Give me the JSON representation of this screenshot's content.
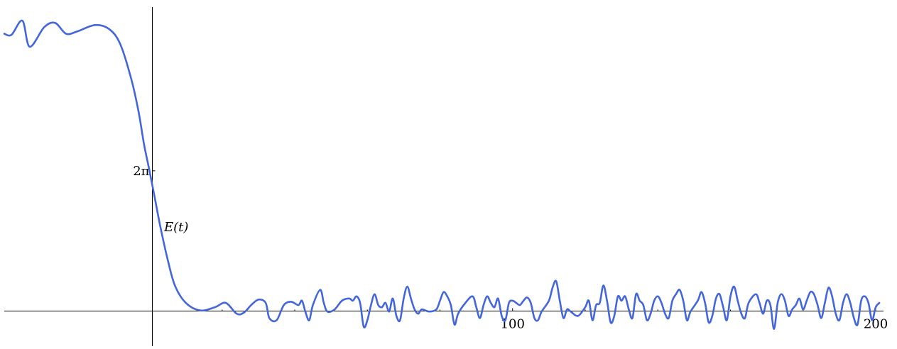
{
  "chart_data": {
    "type": "line",
    "title": "",
    "xlabel": "",
    "ylabel": "",
    "xlim": [
      -40,
      200
    ],
    "ylim": [
      -1.5,
      13.5
    ],
    "x_ticks": [
      {
        "value": 100,
        "label": "100"
      },
      {
        "value": 200,
        "label": "200"
      }
    ],
    "x_minor_ticks": [
      20,
      40,
      60,
      80,
      120,
      140,
      160,
      180
    ],
    "y_ticks": [
      {
        "value": 6.283,
        "label": "2π"
      }
    ],
    "curve_label": "E(t)",
    "curve_label_at": [
      4,
      3.5
    ],
    "grid": false,
    "legend": "none",
    "series": [
      {
        "color": "#4466dd",
        "points": [
          [
            -40,
            12.6
          ],
          [
            -38,
            12.55
          ],
          [
            -35,
            13.2
          ],
          [
            -33,
            12.0
          ],
          [
            -29,
            12.9
          ],
          [
            -26,
            13.1
          ],
          [
            -23,
            12.6
          ],
          [
            -20,
            12.7
          ],
          [
            -15,
            13.0
          ],
          [
            -11,
            12.8
          ],
          [
            -8,
            12.1
          ],
          [
            -5,
            10.5
          ],
          [
            -3,
            9.0
          ],
          [
            -1.5,
            7.5
          ],
          [
            0,
            6.283
          ],
          [
            1.5,
            5.0
          ],
          [
            3,
            3.7
          ],
          [
            5,
            2.2
          ],
          [
            7,
            1.0
          ],
          [
            10,
            0.2
          ],
          [
            14,
            -0.15
          ],
          [
            18,
            0.0
          ],
          [
            21,
            0.2
          ],
          [
            24,
            -0.3
          ],
          [
            26,
            -0.25
          ],
          [
            28,
            0.1
          ],
          [
            30,
            0.35
          ],
          [
            32,
            0.2
          ],
          [
            33,
            -0.5
          ],
          [
            35,
            -0.6
          ],
          [
            37,
            0.1
          ],
          [
            39,
            0.25
          ],
          [
            41,
            0.1
          ],
          [
            42,
            0.3
          ],
          [
            43,
            -0.25
          ],
          [
            44,
            -0.6
          ],
          [
            45,
            0.1
          ],
          [
            47,
            0.8
          ],
          [
            48,
            0.2
          ],
          [
            49,
            -0.2
          ],
          [
            51,
            -0.1
          ],
          [
            53,
            0.3
          ],
          [
            55,
            0.4
          ],
          [
            56,
            0.3
          ],
          [
            57,
            0.5
          ],
          [
            58,
            0.2
          ],
          [
            59,
            -0.9
          ],
          [
            60,
            -0.6
          ],
          [
            61,
            0.1
          ],
          [
            62,
            0.6
          ],
          [
            63,
            0.1
          ],
          [
            64,
            0.0
          ],
          [
            65,
            0.2
          ],
          [
            66,
            -0.2
          ],
          [
            67,
            0.4
          ],
          [
            68,
            -0.4
          ],
          [
            69,
            -0.6
          ],
          [
            70,
            0.4
          ],
          [
            71,
            0.95
          ],
          [
            72,
            0.4
          ],
          [
            73,
            -0.1
          ],
          [
            74,
            -0.3
          ],
          [
            75,
            -0.1
          ],
          [
            77,
            -0.2
          ],
          [
            79,
            -0.1
          ],
          [
            80,
            0.3
          ],
          [
            81,
            0.7
          ],
          [
            82,
            0.5
          ],
          [
            83,
            0.1
          ],
          [
            84,
            -0.8
          ],
          [
            85,
            -0.3
          ],
          [
            87,
            0.2
          ],
          [
            89,
            0.5
          ],
          [
            90,
            0.0
          ],
          [
            91,
            -0.5
          ],
          [
            92,
            0.1
          ],
          [
            93,
            0.5
          ],
          [
            94,
            0.2
          ],
          [
            95,
            0.0
          ],
          [
            96,
            0.4
          ],
          [
            97,
            -0.4
          ],
          [
            98,
            -0.6
          ],
          [
            99,
            0.2
          ],
          [
            100,
            0.3
          ],
          [
            101,
            0.2
          ],
          [
            102,
            0.1
          ],
          [
            103,
            0.3
          ],
          [
            104,
            0.45
          ],
          [
            105,
            0.2
          ],
          [
            106,
            -0.5
          ],
          [
            107,
            -0.6
          ],
          [
            108,
            -0.2
          ],
          [
            110,
            0.3
          ],
          [
            111,
            0.9
          ],
          [
            112,
            1.2
          ],
          [
            113,
            0.3
          ],
          [
            114,
            -0.5
          ],
          [
            115,
            -0.1
          ],
          [
            116,
            -0.2
          ],
          [
            118,
            -0.4
          ],
          [
            120,
            0.0
          ],
          [
            121,
            0.3
          ],
          [
            122,
            -0.6
          ],
          [
            123,
            0.1
          ],
          [
            124,
            0.2
          ],
          [
            125,
            1.0
          ],
          [
            126,
            0.3
          ],
          [
            127,
            -0.7
          ],
          [
            128,
            -0.4
          ],
          [
            129,
            0.5
          ],
          [
            130,
            0.3
          ],
          [
            131,
            0.5
          ],
          [
            132,
            -0.1
          ],
          [
            133,
            -0.5
          ],
          [
            134,
            0.6
          ],
          [
            135,
            0.3
          ],
          [
            136,
            0.1
          ],
          [
            137,
            -0.6
          ],
          [
            138,
            -0.3
          ],
          [
            139,
            0.3
          ],
          [
            140,
            0.5
          ],
          [
            141,
            0.2
          ],
          [
            142,
            -0.3
          ],
          [
            143,
            -0.5
          ],
          [
            144,
            0.3
          ],
          [
            145,
            0.6
          ],
          [
            146,
            0.8
          ],
          [
            147,
            0.3
          ],
          [
            148,
            -0.6
          ],
          [
            149,
            -0.2
          ],
          [
            151,
            0.3
          ],
          [
            152,
            0.7
          ],
          [
            153,
            0.2
          ],
          [
            154,
            -0.7
          ],
          [
            155,
            -0.4
          ],
          [
            156,
            0.4
          ],
          [
            157,
            0.6
          ],
          [
            158,
            0.0
          ],
          [
            159,
            -0.6
          ],
          [
            160,
            0.5
          ],
          [
            161,
            0.95
          ],
          [
            162,
            0.3
          ],
          [
            163,
            -0.3
          ],
          [
            164,
            -0.5
          ],
          [
            165,
            0.2
          ],
          [
            167,
            0.6
          ],
          [
            168,
            0.2
          ],
          [
            169,
            -0.3
          ],
          [
            170,
            0.3
          ],
          [
            171,
            0.1
          ],
          [
            172,
            -1.0
          ],
          [
            173,
            0.2
          ],
          [
            174,
            0.6
          ],
          [
            175,
            0.3
          ],
          [
            176,
            -0.4
          ],
          [
            177,
            -0.1
          ],
          [
            178,
            0.1
          ],
          [
            179,
            0.4
          ],
          [
            180,
            -0.1
          ],
          [
            181,
            0.3
          ],
          [
            182,
            0.7
          ],
          [
            183,
            0.6
          ],
          [
            184,
            0.1
          ],
          [
            185,
            -0.5
          ],
          [
            186,
            0.2
          ],
          [
            187,
            0.9
          ],
          [
            188,
            0.5
          ],
          [
            189,
            -0.3
          ],
          [
            190,
            -0.6
          ],
          [
            191,
            0.2
          ],
          [
            192,
            0.6
          ],
          [
            193,
            0.2
          ],
          [
            194,
            -0.5
          ],
          [
            195,
            -0.8
          ],
          [
            196,
            0.3
          ],
          [
            197,
            0.5
          ],
          [
            198,
            0.2
          ],
          [
            199,
            -0.6
          ],
          [
            200,
            0.0
          ],
          [
            201,
            0.2
          ]
        ]
      }
    ]
  }
}
